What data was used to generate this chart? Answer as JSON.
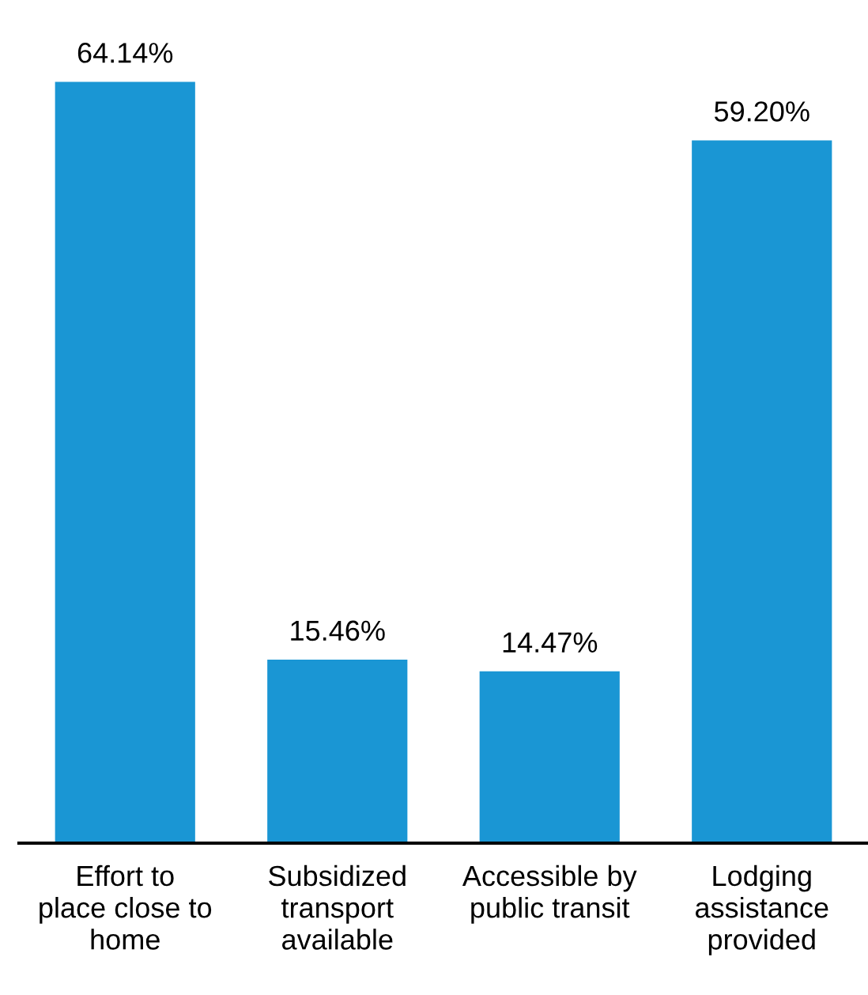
{
  "chart_data": {
    "type": "bar",
    "categories": [
      "Effort to\nplace close to\nhome",
      "Subsidized\ntransport\navailable",
      "Accessible by\npublic transit",
      "Lodging\nassistance\nprovided"
    ],
    "values": [
      64.14,
      15.46,
      14.47,
      59.2
    ],
    "value_labels": [
      "64.14%",
      "15.46%",
      "14.47%",
      "59.20%"
    ],
    "color": "#1a96d4",
    "grid": false,
    "legend": false
  }
}
